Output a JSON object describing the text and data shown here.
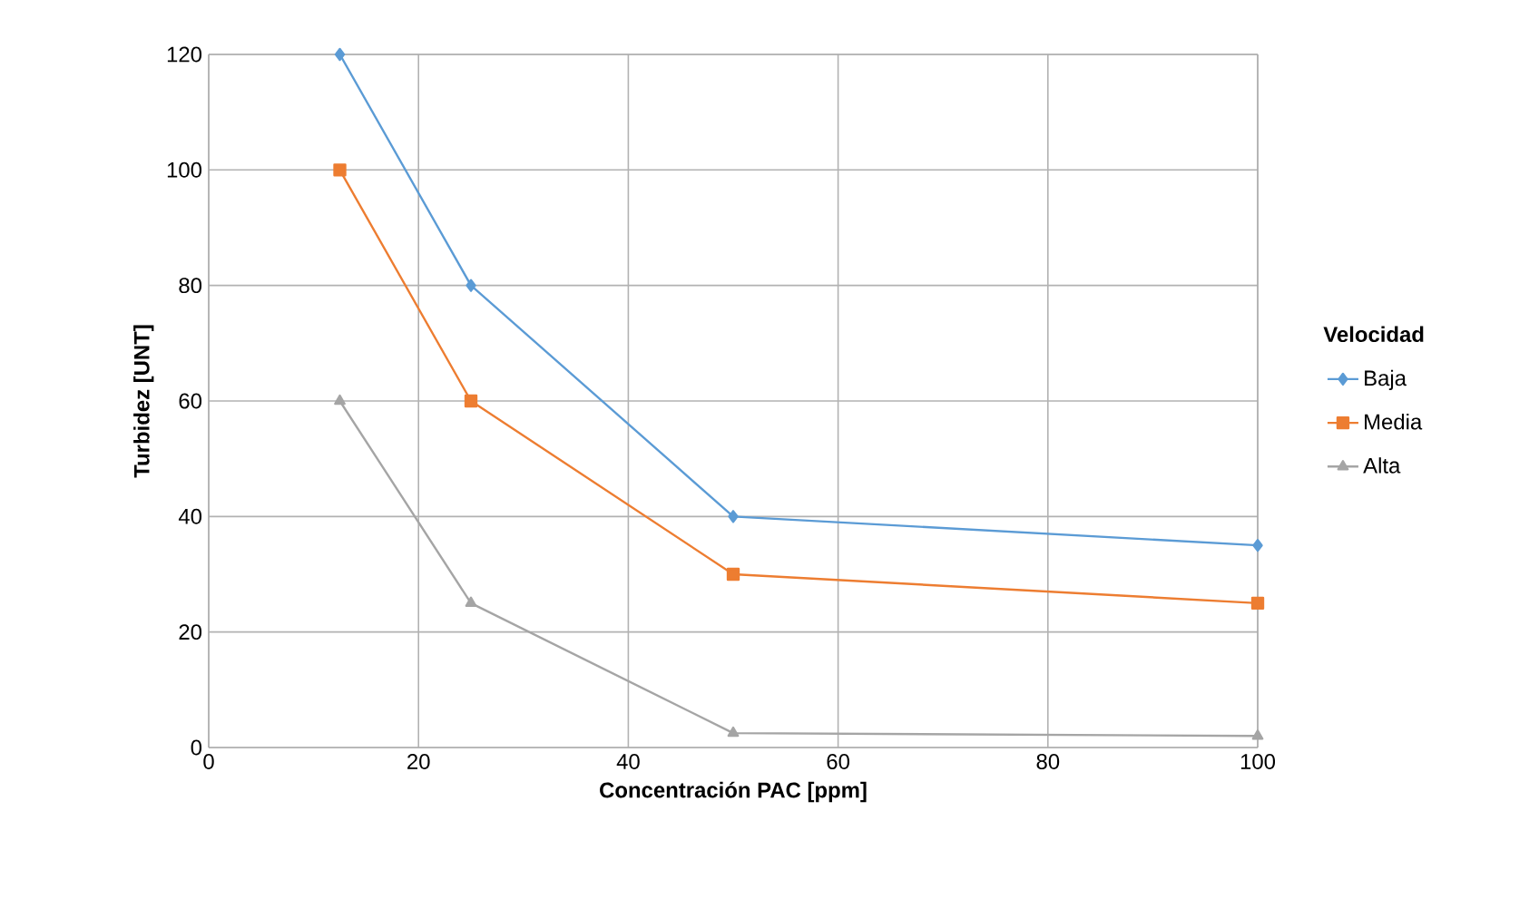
{
  "chart_data": {
    "type": "line",
    "xlabel": "Concentración PAC [ppm]",
    "ylabel": "Turbidez [UNT]",
    "legend_title": "Velocidad",
    "x": [
      12.5,
      25,
      50,
      100
    ],
    "series": [
      {
        "name": "Baja",
        "color": "#5b9bd5",
        "marker": "diamond",
        "values": [
          120,
          80,
          40,
          35
        ]
      },
      {
        "name": "Media",
        "color": "#ed7d31",
        "marker": "square",
        "values": [
          100,
          60,
          30,
          25
        ]
      },
      {
        "name": "Alta",
        "color": "#a5a5a5",
        "marker": "triangle",
        "values": [
          60,
          25,
          2.5,
          2
        ]
      }
    ],
    "xlim": [
      0,
      100
    ],
    "ylim": [
      0,
      120
    ],
    "xticks": [
      0,
      20,
      40,
      60,
      80,
      100
    ],
    "yticks": [
      0,
      20,
      40,
      60,
      80,
      100,
      120
    ],
    "grid": true,
    "legend": "right"
  }
}
